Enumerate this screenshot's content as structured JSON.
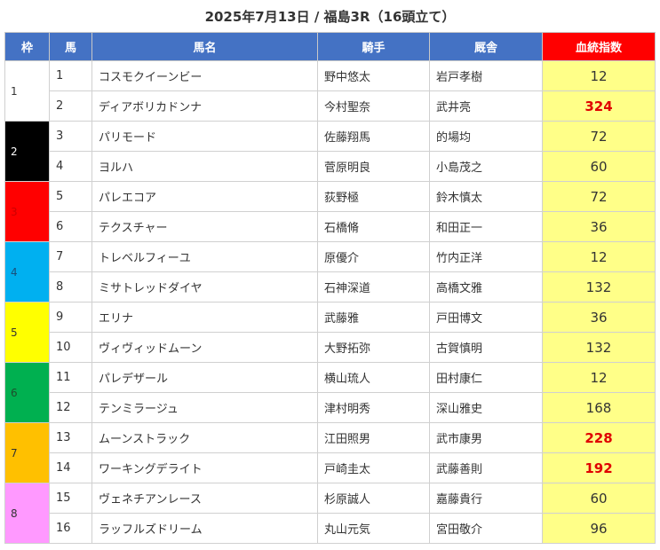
{
  "title": "2025年7月13日 / 福島3R（16頭立て）",
  "headers": {
    "waku": "枠",
    "uma": "馬",
    "name": "馬名",
    "jockey": "騎手",
    "stable": "厩舎",
    "index": "血統指数"
  },
  "colors": {
    "header_bg": "#4472c4",
    "index_header_bg": "#ff0000",
    "index_cell_bg": "#ffff88",
    "highlight_text": "#e00000"
  },
  "groups": [
    {
      "waku": "1",
      "bg": "#ffffff",
      "fg": "#333333",
      "horses": [
        {
          "num": "1",
          "name": "コスモクイーンビー",
          "jockey": "野中悠太",
          "stable": "岩戸孝樹",
          "index": "12",
          "highlight": false
        },
        {
          "num": "2",
          "name": "ディアボリカドンナ",
          "jockey": "今村聖奈",
          "stable": "武井亮",
          "index": "324",
          "highlight": true
        }
      ]
    },
    {
      "waku": "2",
      "bg": "#000000",
      "fg": "#ffffff",
      "horses": [
        {
          "num": "3",
          "name": "パリモード",
          "jockey": "佐藤翔馬",
          "stable": "的場均",
          "index": "72",
          "highlight": false
        },
        {
          "num": "4",
          "name": "ヨルハ",
          "jockey": "菅原明良",
          "stable": "小島茂之",
          "index": "60",
          "highlight": false
        }
      ]
    },
    {
      "waku": "3",
      "bg": "#ff0000",
      "fg": "#cc0000",
      "horses": [
        {
          "num": "5",
          "name": "パレエコア",
          "jockey": "荻野極",
          "stable": "鈴木慎太",
          "index": "72",
          "highlight": false
        },
        {
          "num": "6",
          "name": "テクスチャー",
          "jockey": "石橋脩",
          "stable": "和田正一",
          "index": "36",
          "highlight": false
        }
      ]
    },
    {
      "waku": "4",
      "bg": "#00b0f0",
      "fg": "#1a4f7a",
      "horses": [
        {
          "num": "7",
          "name": "トレベルフィーユ",
          "jockey": "原優介",
          "stable": "竹内正洋",
          "index": "12",
          "highlight": false
        },
        {
          "num": "8",
          "name": "ミサトレッドダイヤ",
          "jockey": "石神深道",
          "stable": "高橋文雅",
          "index": "132",
          "highlight": false
        }
      ]
    },
    {
      "waku": "5",
      "bg": "#ffff00",
      "fg": "#333333",
      "horses": [
        {
          "num": "9",
          "name": "エリナ",
          "jockey": "武藤雅",
          "stable": "戸田博文",
          "index": "36",
          "highlight": false
        },
        {
          "num": "10",
          "name": "ヴィヴィッドムーン",
          "jockey": "大野拓弥",
          "stable": "古賀慎明",
          "index": "132",
          "highlight": false
        }
      ]
    },
    {
      "waku": "6",
      "bg": "#00b050",
      "fg": "#1e4d2b",
      "horses": [
        {
          "num": "11",
          "name": "パレデザール",
          "jockey": "横山琉人",
          "stable": "田村康仁",
          "index": "12",
          "highlight": false
        },
        {
          "num": "12",
          "name": "テンミラージュ",
          "jockey": "津村明秀",
          "stable": "深山雅史",
          "index": "168",
          "highlight": false
        }
      ]
    },
    {
      "waku": "7",
      "bg": "#ffc000",
      "fg": "#333333",
      "horses": [
        {
          "num": "13",
          "name": "ムーンストラック",
          "jockey": "江田照男",
          "stable": "武市康男",
          "index": "228",
          "highlight": true
        },
        {
          "num": "14",
          "name": "ワーキングデライト",
          "jockey": "戸崎圭太",
          "stable": "武藤善則",
          "index": "192",
          "highlight": true
        }
      ]
    },
    {
      "waku": "8",
      "bg": "#ff99ff",
      "fg": "#333333",
      "horses": [
        {
          "num": "15",
          "name": "ヴェネチアンレース",
          "jockey": "杉原誠人",
          "stable": "嘉藤貴行",
          "index": "60",
          "highlight": false
        },
        {
          "num": "16",
          "name": "ラッフルズドリーム",
          "jockey": "丸山元気",
          "stable": "宮田敬介",
          "index": "96",
          "highlight": false
        }
      ]
    }
  ]
}
